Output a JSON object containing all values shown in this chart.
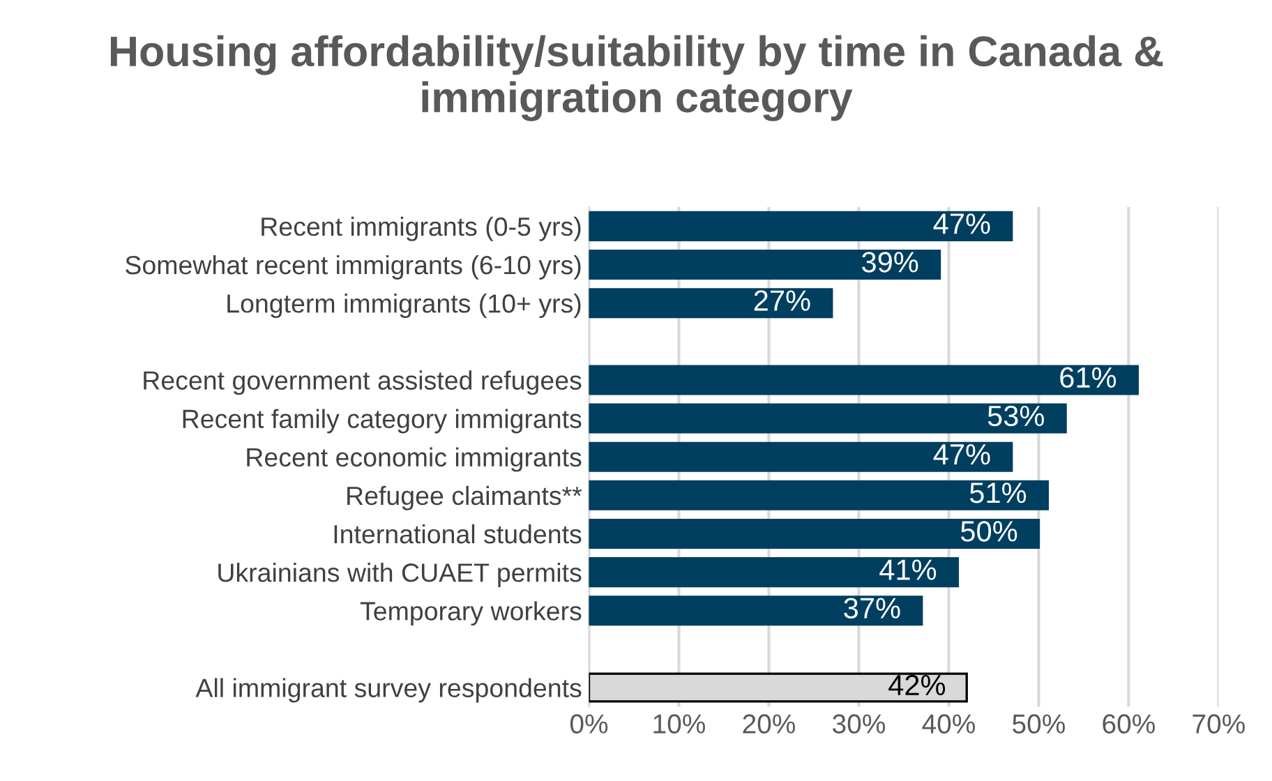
{
  "chart_data": {
    "type": "bar",
    "orientation": "horizontal",
    "title": "Housing affordability/suitability by time in Canada & immigration category",
    "categories": [
      "Recent immigrants (0-5 yrs)",
      "Somewhat recent immigrants (6-10 yrs)",
      "Longterm immigrants (10+ yrs)",
      null,
      "Recent government assisted refugees",
      "Recent family category immigrants",
      "Recent economic immigrants",
      "Refugee claimants**",
      "International students",
      "Ukrainians with CUAET permits",
      "Temporary workers",
      null,
      "All immigrant survey respondents"
    ],
    "values": [
      47,
      39,
      27,
      null,
      61,
      53,
      47,
      51,
      50,
      41,
      37,
      null,
      42
    ],
    "value_labels": [
      "47%",
      "39%",
      "27%",
      null,
      "61%",
      "53%",
      "47%",
      "51%",
      "50%",
      "41%",
      "37%",
      null,
      "42%"
    ],
    "colors": [
      "#003f5f",
      "#003f5f",
      "#003f5f",
      "#003f5f",
      "#003f5f",
      "#003f5f",
      "#003f5f",
      "#003f5f",
      "#003f5f",
      "#003f5f",
      "#003f5f",
      "#003f5f",
      "#d9d9d9"
    ],
    "xlim": [
      0,
      70
    ],
    "xticks": [
      {
        "value": 0,
        "label": "0%"
      },
      {
        "value": 10,
        "label": "10%"
      },
      {
        "value": 20,
        "label": "20%"
      },
      {
        "value": 30,
        "label": "30%"
      },
      {
        "value": 40,
        "label": "40%"
      },
      {
        "value": 50,
        "label": "50%"
      },
      {
        "value": 60,
        "label": "60%"
      },
      {
        "value": 70,
        "label": "70%"
      }
    ],
    "grid": "x",
    "legend": false
  }
}
